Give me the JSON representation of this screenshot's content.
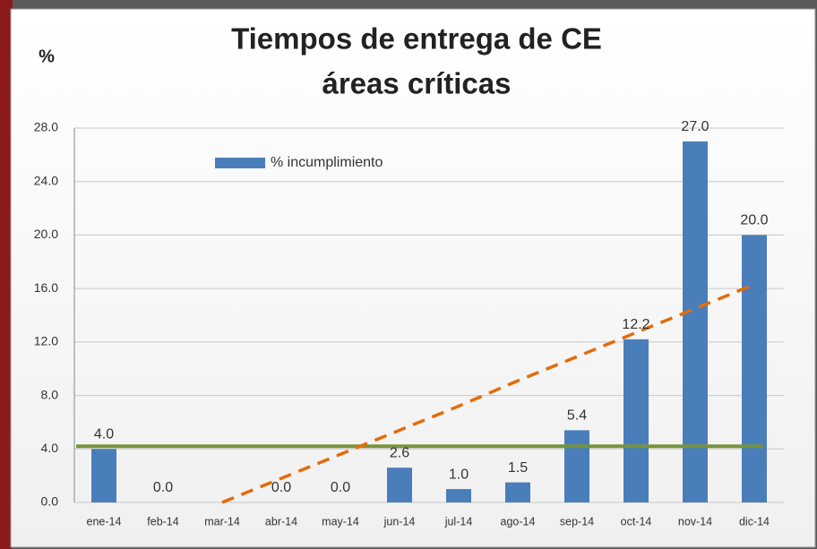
{
  "chart_data": {
    "type": "bar",
    "title": "Tiempos de entrega de CE",
    "subtitle": "áreas críticas",
    "y_axis_label": "%",
    "categories": [
      "ene-14",
      "feb-14",
      "mar-14",
      "abr-14",
      "may-14",
      "jun-14",
      "jul-14",
      "ago-14",
      "sep-14",
      "oct-14",
      "nov-14",
      "dic-14"
    ],
    "series": [
      {
        "name": "% incumplimiento",
        "color": "#4a7ebb",
        "values": [
          4.0,
          0.0,
          null,
          0.0,
          0.0,
          2.6,
          1.0,
          1.5,
          5.4,
          12.2,
          27.0,
          20.0
        ],
        "value_labels": [
          "4.0",
          "0.0",
          null,
          "0.0",
          "0.0",
          "2.6",
          "1.0",
          "1.5",
          "5.4",
          "12.2",
          "27.0",
          "20.0"
        ]
      }
    ],
    "reference_line": {
      "value": 4.2,
      "color": "#77933c"
    },
    "trendline": {
      "color": "#e46c0a",
      "values": [
        null,
        null,
        0.0,
        1.8,
        3.6,
        5.4,
        7.2,
        9.1,
        10.9,
        12.7,
        14.5,
        16.3
      ]
    },
    "ylim": [
      0,
      28
    ],
    "yticks": [
      {
        "value": 0,
        "label": "0.0"
      },
      {
        "value": 4,
        "label": "4.0"
      },
      {
        "value": 8,
        "label": "8.0"
      },
      {
        "value": 12,
        "label": "12.0"
      },
      {
        "value": 16,
        "label": "16.0"
      },
      {
        "value": 20,
        "label": "20.0"
      },
      {
        "value": 24,
        "label": "24.0"
      },
      {
        "value": 28,
        "label": "28.0"
      }
    ],
    "grid": true,
    "legend": "top-left"
  }
}
